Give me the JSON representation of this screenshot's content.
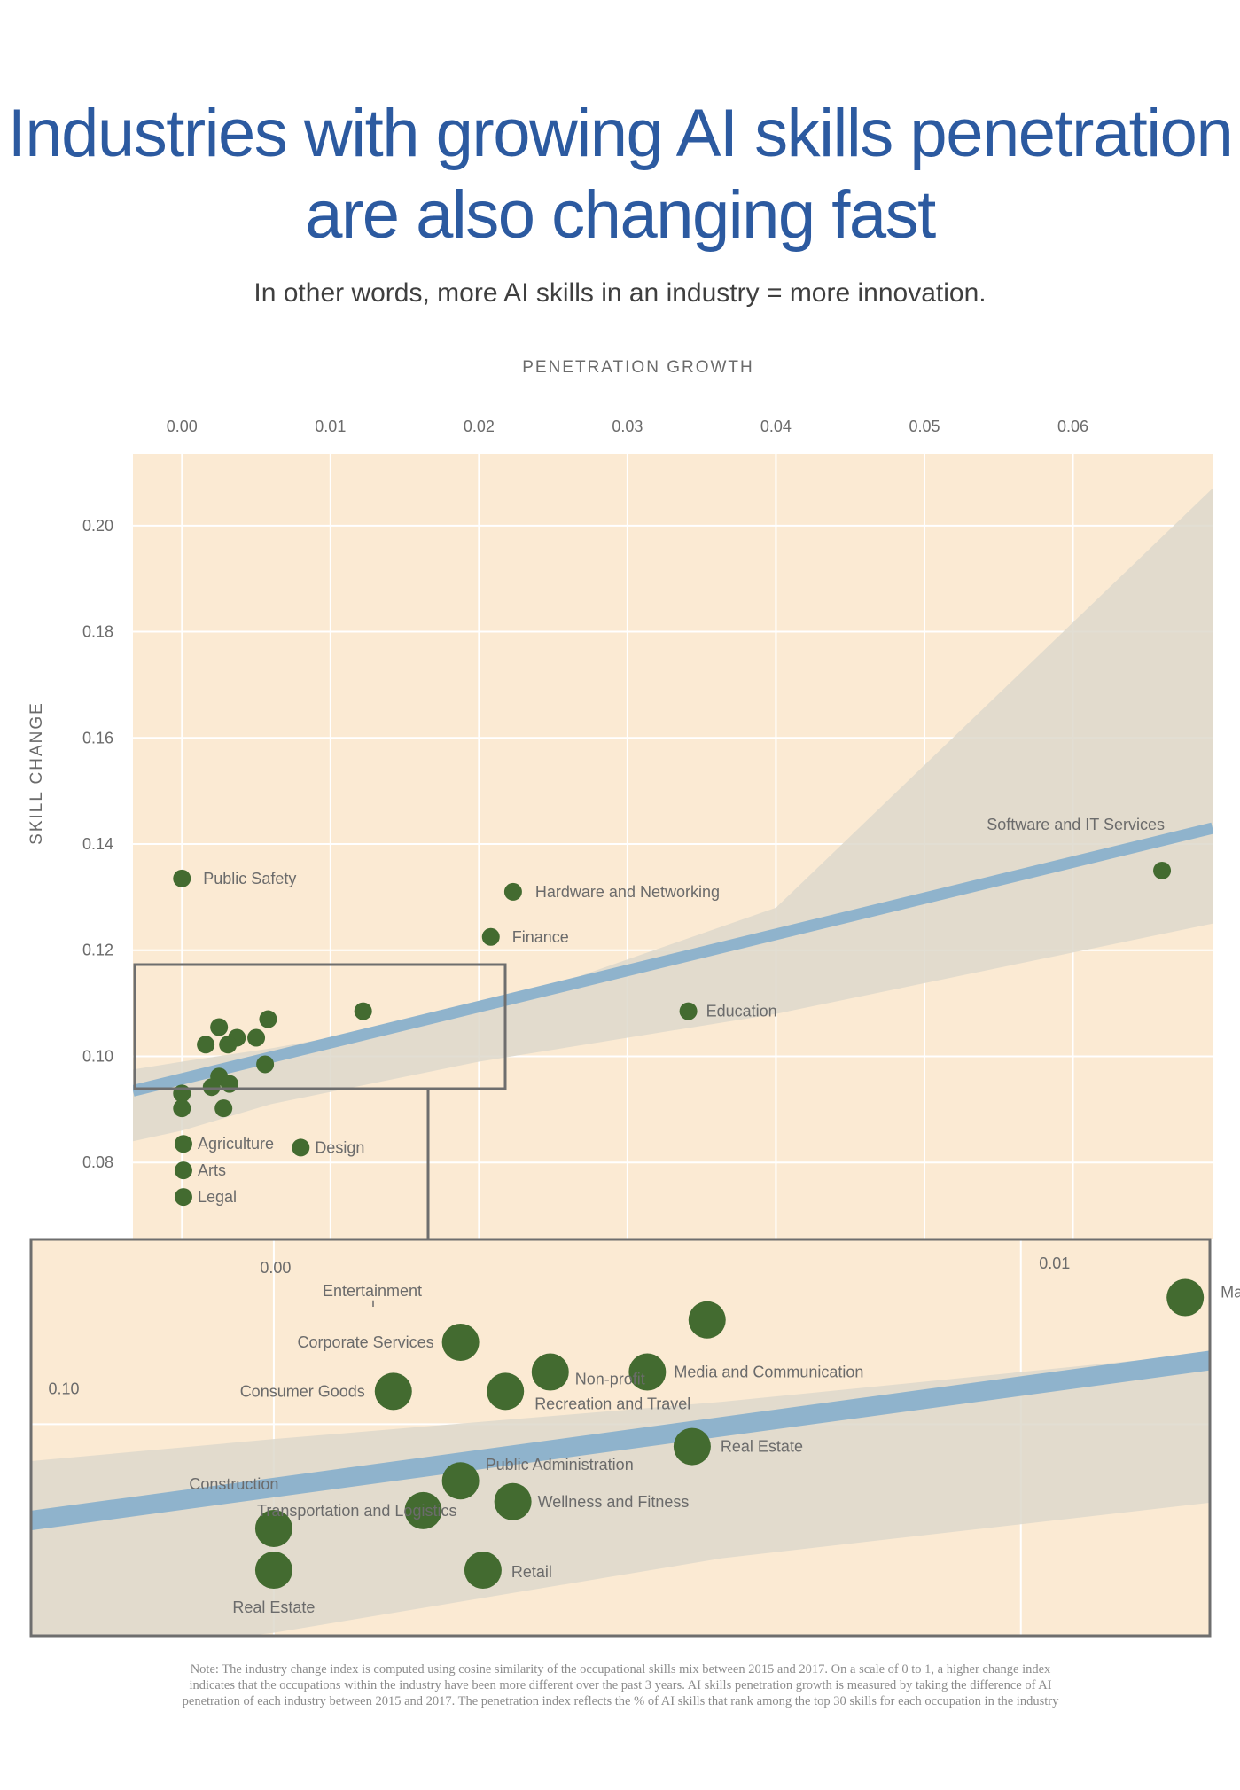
{
  "title": {
    "line1": "Industries with growing AI skills penetration",
    "line2": "are also changing fast"
  },
  "subtitle": "In other words, more AI skills in an industry = more innovation.",
  "note": {
    "line1": "Note: The industry change index is computed using cosine similarity of the occupational skills mix between 2015 and 2017. On a scale of 0 to 1, a higher change index",
    "line2": "indicates that the occupations within the industry have been more different over the past 3 years. AI skills penetration growth is measured by taking the difference of AI",
    "line3": "penetration of each industry between 2015 and 2017. The penetration index reflects the % of AI skills that rank among the top 30 skills for each occupation in the industry"
  },
  "colors": {
    "title": "#2c5aa0",
    "background": "#fbead3",
    "grid": "#ffffff",
    "trend_line": "#8fb3cc",
    "confidence_band": "#ddd8cb",
    "marker": "#436b30",
    "text": "#6b6b6b",
    "box": "#6e6e6e"
  },
  "chart_data": [
    {
      "type": "scatter",
      "xlabel": "PENETRATION GROWTH",
      "ylabel": "SKILL CHANGE",
      "x_ticks": [
        "0.00",
        "0.01",
        "0.02",
        "0.03",
        "0.04",
        "0.05",
        "0.06"
      ],
      "y_ticks": [
        "0.08",
        "0.10",
        "0.12",
        "0.14",
        "0.16",
        "0.18",
        "0.20"
      ],
      "xlim": [
        -0.0033,
        0.0694
      ],
      "ylim": [
        0.0655,
        0.2135
      ],
      "x_axis_position": "top",
      "grid": true,
      "trend_line": {
        "x": [
          -0.0033,
          0.0694
        ],
        "y": [
          0.0935,
          0.143
        ]
      },
      "confidence_band": {
        "x": [
          -0.0033,
          0.0,
          0.006,
          0.02,
          0.04,
          0.0694
        ],
        "upper": [
          0.0975,
          0.099,
          0.1015,
          0.1085,
          0.128,
          0.207
        ],
        "lower": [
          0.084,
          0.086,
          0.091,
          0.099,
          0.108,
          0.125
        ]
      },
      "points": [
        {
          "label": "Software and IT Services",
          "x": 0.066,
          "y": 0.135
        },
        {
          "label": "Public  Safety",
          "x": 0.0,
          "y": 0.1335
        },
        {
          "label": "Hardware  and Networking",
          "x": 0.0223,
          "y": 0.131
        },
        {
          "label": "Finance",
          "x": 0.0208,
          "y": 0.1225
        },
        {
          "label": "Education",
          "x": 0.0341,
          "y": 0.1085
        },
        {
          "label": "Agriculture",
          "x": 0.0001,
          "y": 0.0835
        },
        {
          "label": "Design",
          "x": 0.008,
          "y": 0.0828
        },
        {
          "label": "Arts",
          "x": 0.0001,
          "y": 0.0785
        },
        {
          "label": "Legal",
          "x": 0.0001,
          "y": 0.0735
        },
        {
          "label": "",
          "x": 0.0122,
          "y": 0.1085
        },
        {
          "label": "",
          "x": 0.0058,
          "y": 0.107
        },
        {
          "label": "",
          "x": 0.0025,
          "y": 0.1055
        },
        {
          "label": "",
          "x": 0.005,
          "y": 0.1035
        },
        {
          "label": "",
          "x": 0.0037,
          "y": 0.1035
        },
        {
          "label": "",
          "x": 0.0016,
          "y": 0.1022
        },
        {
          "label": "",
          "x": 0.0031,
          "y": 0.1022
        },
        {
          "label": "",
          "x": 0.0056,
          "y": 0.0985
        },
        {
          "label": "",
          "x": 0.0025,
          "y": 0.0962
        },
        {
          "label": "",
          "x": 0.0032,
          "y": 0.0948
        },
        {
          "label": "",
          "x": 0.002,
          "y": 0.0942
        },
        {
          "label": "",
          "x": 0.0,
          "y": 0.093
        },
        {
          "label": "",
          "x": 0.0028,
          "y": 0.0902
        },
        {
          "label": "",
          "x": 0.0,
          "y": 0.0902
        }
      ]
    },
    {
      "type": "scatter",
      "description_label": "zoom",
      "x_ticks": [
        "0.00",
        "0.01"
      ],
      "y_ticks": [
        "0.10"
      ],
      "xlim": [
        -0.00325,
        0.01253
      ],
      "ylim": [
        0.0858,
        0.1124
      ],
      "grid": true,
      "points": [
        {
          "label": "Manufacturing",
          "x": 0.0122,
          "y": 0.1085
        },
        {
          "label": "Entertainment",
          "x": 0.0058,
          "y": 0.107
        },
        {
          "label": "Media and Communication",
          "x": 0.005,
          "y": 0.1035
        },
        {
          "label": "Corporate Services",
          "x": 0.0025,
          "y": 0.1055
        },
        {
          "label": "Non-profit",
          "x": 0.0037,
          "y": 0.1035
        },
        {
          "label": "Consumer Goods",
          "x": 0.0016,
          "y": 0.1022
        },
        {
          "label": "Recreation and Travel",
          "x": 0.0031,
          "y": 0.1022
        },
        {
          "label": "Real Estate",
          "x": 0.0056,
          "y": 0.0985
        },
        {
          "label": "Construction",
          "x": 0.0,
          "y": 0.093
        },
        {
          "label": "Public Administration",
          "x": 0.0025,
          "y": 0.0962
        },
        {
          "label": "Wellness and Fitness",
          "x": 0.0032,
          "y": 0.0948
        },
        {
          "label": "Transportation and Logistics",
          "x": 0.002,
          "y": 0.0942
        },
        {
          "label": "Real Estate",
          "x": 0.0,
          "y": 0.0902
        },
        {
          "label": "Retail",
          "x": 0.0028,
          "y": 0.0902
        }
      ]
    }
  ]
}
